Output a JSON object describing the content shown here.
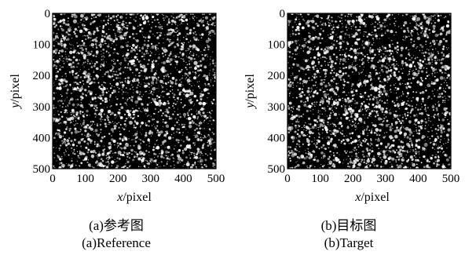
{
  "figures": [
    {
      "id": "a",
      "caption_cn": "(a)参考图",
      "caption_en": "(a)Reference",
      "x_axis": {
        "var": "x",
        "unit": "/pixel",
        "ticks": [
          "0",
          "100",
          "200",
          "300",
          "400",
          "500"
        ]
      },
      "y_axis": {
        "var": "y",
        "unit": "/pixel",
        "ticks": [
          "0",
          "100",
          "200",
          "300",
          "400",
          "500"
        ]
      },
      "range": [
        0,
        500
      ]
    },
    {
      "id": "b",
      "caption_cn": "(b)目标图",
      "caption_en": "(b)Target",
      "x_axis": {
        "var": "x",
        "unit": "/pixel",
        "ticks": [
          "0",
          "100",
          "200",
          "300",
          "400",
          "500"
        ]
      },
      "y_axis": {
        "var": "y",
        "unit": "/pixel",
        "ticks": [
          "0",
          "100",
          "200",
          "300",
          "400",
          "500"
        ]
      },
      "range": [
        0,
        500
      ]
    }
  ],
  "image_style": {
    "background": "#000000",
    "speckle_color": "#ffffff"
  }
}
